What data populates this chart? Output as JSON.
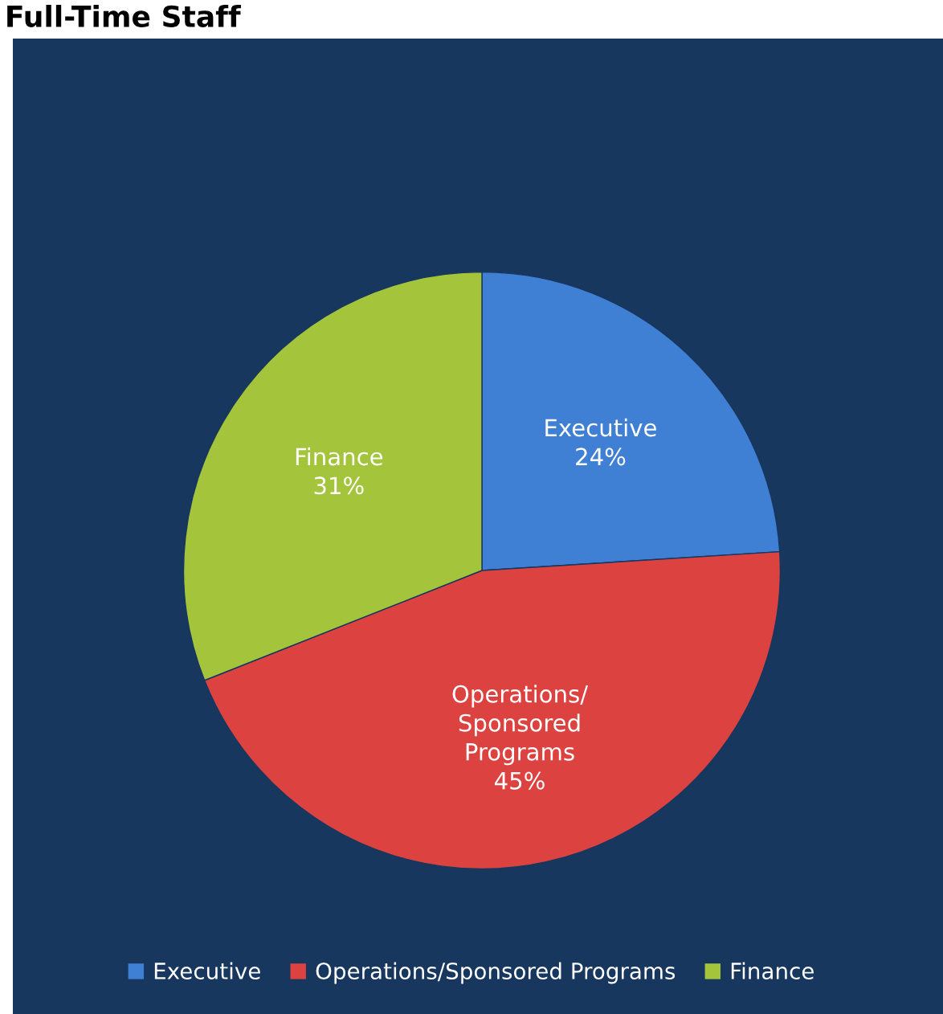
{
  "chart_data": {
    "type": "pie",
    "title": "Full-Time Staff",
    "categories": [
      "Executive",
      "Operations/Sponsored Programs",
      "Finance"
    ],
    "values": [
      24,
      45,
      31
    ],
    "colors": [
      "#3f7fd4",
      "#dc4240",
      "#a4c43c"
    ],
    "value_labels": [
      "24%",
      "45%",
      "31%"
    ],
    "legend": "bottom"
  }
}
